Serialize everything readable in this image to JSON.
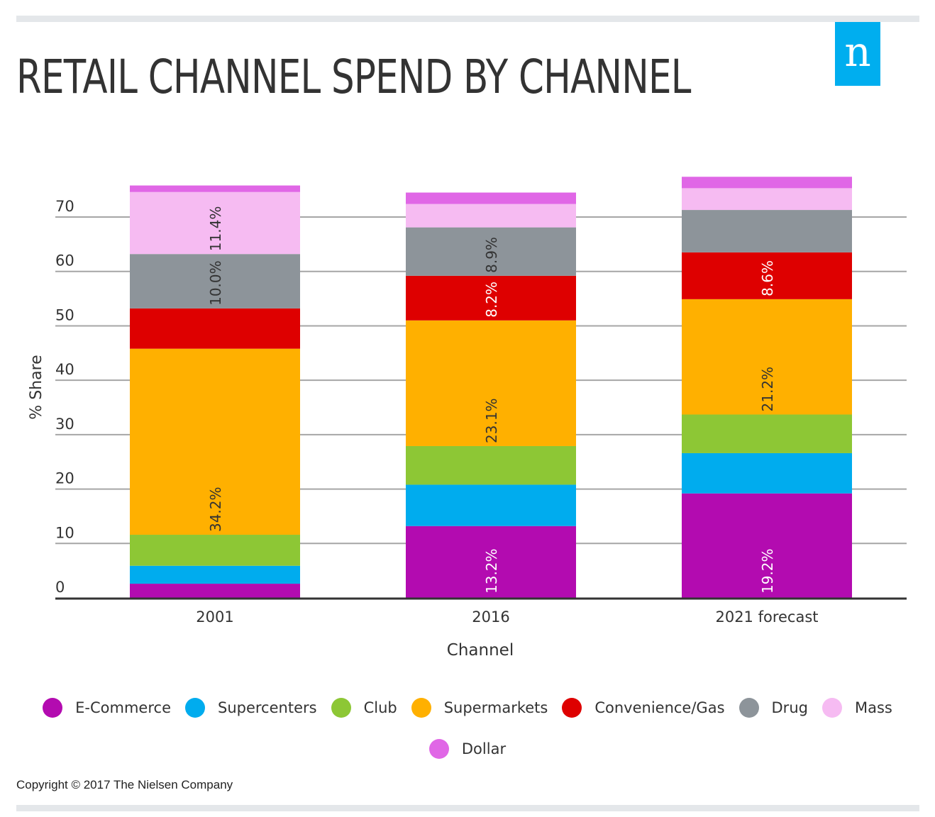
{
  "header": {
    "title": "RETAIL CHANNEL SPEND BY CHANNEL",
    "logo_letter": "n",
    "logo_color": "#00aeef"
  },
  "footer": {
    "copyright": "Copyright © 2017 The Nielsen Company"
  },
  "chart_data": {
    "type": "bar",
    "stacked": true,
    "orientation": "vertical",
    "title": "RETAIL CHANNEL SPEND BY CHANNEL",
    "xlabel": "Channel",
    "ylabel": "% Share",
    "ylim": [
      0,
      78
    ],
    "yticks": [
      0,
      10,
      20,
      30,
      40,
      50,
      60,
      70
    ],
    "grid": true,
    "legend_position": "bottom",
    "categories": [
      "2001",
      "2016",
      "2021 forecast"
    ],
    "series": [
      {
        "name": "E-Commerce",
        "color": "#b30bb0",
        "values": [
          2.6,
          13.2,
          19.2
        ],
        "labels": [
          null,
          "13.2%",
          "19.2%"
        ],
        "label_color": "#ffffff"
      },
      {
        "name": "Supercenters",
        "color": "#00acee",
        "values": [
          3.3,
          7.6,
          7.4
        ],
        "labels": [
          null,
          null,
          null
        ],
        "label_color": "#333333"
      },
      {
        "name": "Club",
        "color": "#8dc735",
        "values": [
          5.7,
          7.1,
          7.1
        ],
        "labels": [
          null,
          null,
          null
        ],
        "label_color": "#333333"
      },
      {
        "name": "Supermarkets",
        "color": "#ffb000",
        "values": [
          34.2,
          23.1,
          21.2
        ],
        "labels": [
          "34.2%",
          "23.1%",
          "21.2%"
        ],
        "label_color": "#333333"
      },
      {
        "name": "Convenience/Gas",
        "color": "#de0000",
        "values": [
          7.4,
          8.2,
          8.6
        ],
        "labels": [
          null,
          "8.2%",
          "8.6%"
        ],
        "label_color": "#ffffff"
      },
      {
        "name": "Drug",
        "color": "#8d949a",
        "values": [
          10.0,
          8.9,
          7.8
        ],
        "labels": [
          "10.0%",
          "8.9%",
          null
        ],
        "label_color": "#333333"
      },
      {
        "name": "Mass",
        "color": "#f6bbf2",
        "values": [
          11.4,
          4.3,
          4.0
        ],
        "labels": [
          "11.4%",
          null,
          null
        ],
        "label_color": "#333333"
      },
      {
        "name": "Dollar",
        "color": "#e067e6",
        "values": [
          1.2,
          2.1,
          2.1
        ],
        "labels": [
          null,
          null,
          null
        ],
        "label_color": "#333333"
      }
    ]
  }
}
